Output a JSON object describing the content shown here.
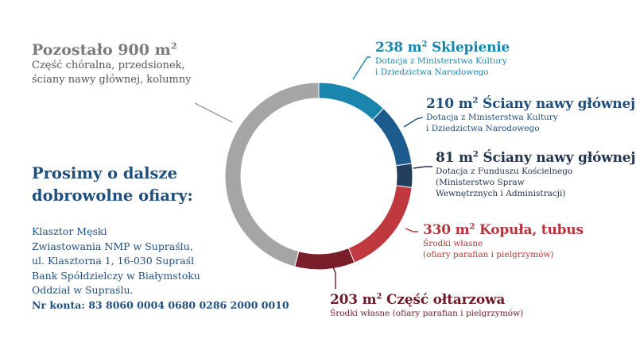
{
  "chart_data": {
    "type": "pie",
    "variant": "donut",
    "start": "top",
    "direction": "clockwise",
    "unit": "m²",
    "slices": [
      {
        "value": 238,
        "label": "238 m² Sklepienie",
        "funding": [
          "Dotacja z Ministerstwa Kultury",
          "i Dziedzictwa Narodowego"
        ],
        "color": "#1a86ad",
        "text_color": "#1a86ad"
      },
      {
        "value": 210,
        "label": "210 m² Ściany nawy głównej",
        "funding": [
          "Dotacja z Ministerstwa Kultury",
          "i Dziedzictwa Narodowego"
        ],
        "color": "#1b5b8d",
        "text_color": "#1f4f7d"
      },
      {
        "value": 81,
        "label": "81 m² Ściany nawy głównej",
        "funding": [
          "Dotacja z Funduszu Kościelnego",
          "(Ministerstwo Spraw",
          "Wewnętrznych i Administracji)"
        ],
        "color": "#233f5d",
        "text_color": "#23354f"
      },
      {
        "value": 330,
        "label": "330 m² Kopuła, tubus",
        "funding": [
          "Środki własne",
          "(ofiary parafian i pielgrzymów)"
        ],
        "color": "#c0393f",
        "text_color": "#b5363b"
      },
      {
        "value": 203,
        "label": "203 m² Część ołtarzowa",
        "funding": [
          "Środki własne (ofiary parafian i pielgrzymów)"
        ],
        "color": "#7a1e2b",
        "text_color": "#6e1c27"
      },
      {
        "value": 900,
        "label": "Pozostało 900 m²",
        "funding": [
          "Część chóralna, przedsionek,",
          "ściany nawy głównej, kolumny"
        ],
        "color": "#a5a5a5",
        "text_color": "#7b7b7b"
      }
    ]
  },
  "remaining": {
    "title": "Pozostało 900 m",
    "title_sup": "2",
    "desc1": "Część chóralna, przedsionek,",
    "desc2": "ściany nawy głównej, kolumny"
  },
  "appeal": {
    "line1": "Prosimy o dalsze",
    "line2": "dobrowolne ofiary:"
  },
  "address": {
    "line1": "Klasztor Męski",
    "line2": "Zwiastowania NMP w Supraślu,",
    "line3": "ul. Klasztorna 1, 16-030 Supraśl",
    "line4": "Bank Spółdzielczy w Białymstoku",
    "line5": "Oddział w Supraślu.",
    "account": "Nr konta: 83 8060 0004 0680 0286 2000 0010"
  },
  "labels": {
    "s1": {
      "value": "238 m",
      "sup": "2",
      "name": " Sklepienie",
      "l1": "Dotacja z Ministerstwa Kultury",
      "l2": "i Dziedzictwa Narodowego"
    },
    "s2": {
      "value": "210 m",
      "sup": "2",
      "name": " Ściany nawy głównej",
      "l1": "Dotacja z Ministerstwa Kultury",
      "l2": "i Dziedzictwa Narodowego"
    },
    "s3": {
      "value": "81 m",
      "sup": "2",
      "name": " Ściany nawy głównej",
      "l1": "Dotacja z Funduszu Kościelnego",
      "l2": "(Ministerstwo Spraw",
      "l3": "Wewnętrznych i Administracji)"
    },
    "s4": {
      "value": "330 m",
      "sup": "2",
      "name": " Kopuła, tubus",
      "l1": "Środki własne",
      "l2": "(ofiary parafian i pielgrzymów)"
    },
    "s5": {
      "value": "203 m",
      "sup": "2",
      "name": " Część ołtarzowa",
      "l1": "Środki własne (ofiary parafian i pielgrzymów)"
    }
  }
}
